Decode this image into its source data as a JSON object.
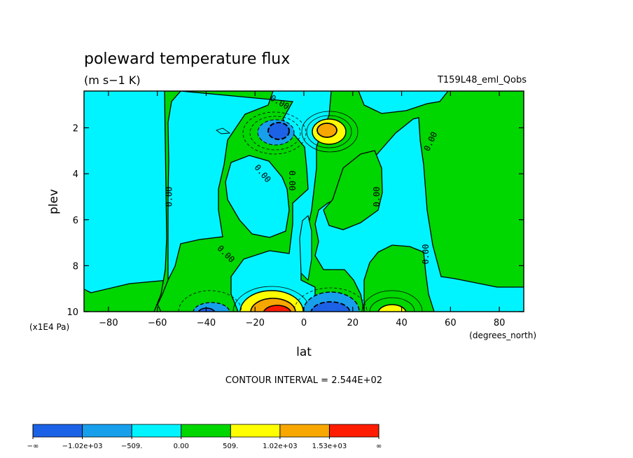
{
  "chart_data": {
    "type": "heatmap",
    "title": "poleward temperature flux",
    "subtitle": "(m s−1 K)",
    "dataset_label": "T159L48_eml_Qobs",
    "xlabel": "lat",
    "ylabel": "plev",
    "x_units": "(degrees_north)",
    "y_units": "(x1E4 Pa)",
    "xlim": [
      -90,
      90
    ],
    "ylim": [
      10,
      0.4
    ],
    "x_ticks": [
      -80,
      -60,
      -40,
      -20,
      0,
      20,
      40,
      60,
      80
    ],
    "x_tick_labels": [
      "−80",
      "−60",
      "−40",
      "−20",
      "0",
      "20",
      "40",
      "60",
      "80"
    ],
    "y_ticks": [
      2,
      4,
      6,
      8,
      10
    ],
    "y_tick_labels": [
      "2",
      "4",
      "6",
      "8",
      "10"
    ],
    "contour_interval_text": "CONTOUR INTERVAL = 2.544E+02",
    "contour_interval": 254.4,
    "contour_zero_label": "0.00",
    "contour_labels": [
      {
        "lat": -10,
        "plev": 0.9
      },
      {
        "lat": -17,
        "plev": 4.0
      },
      {
        "lat": -5,
        "plev": 4.3
      },
      {
        "lat": -55,
        "plev": 5.0
      },
      {
        "lat": -32,
        "plev": 7.5
      },
      {
        "lat": 30,
        "plev": 5.0
      },
      {
        "lat": 52,
        "plev": 2.6
      },
      {
        "lat": 50,
        "plev": 7.5
      }
    ],
    "anomalies": [
      {
        "lat": -13,
        "plev": 1.9,
        "value": -1400
      },
      {
        "lat": 11,
        "plev": 1.9,
        "value": 1700
      },
      {
        "lat": -12,
        "plev": 9.8,
        "value": 1700
      },
      {
        "lat": 12,
        "plev": 9.8,
        "value": -1300
      },
      {
        "lat": -38,
        "plev": 9.8,
        "value": -1050
      },
      {
        "lat": 36,
        "plev": 9.8,
        "value": 1100
      }
    ],
    "colorbar": {
      "colors": [
        "#1c62e6",
        "#179fec",
        "#00f4ff",
        "#00d600",
        "#ffff00",
        "#f7a700",
        "#ff1c00"
      ],
      "labels": [
        "−∞",
        "−1.02e+03",
        "−509.",
        "0.00",
        "509.",
        "1.02e+03",
        "1.53e+03",
        "∞"
      ]
    }
  }
}
